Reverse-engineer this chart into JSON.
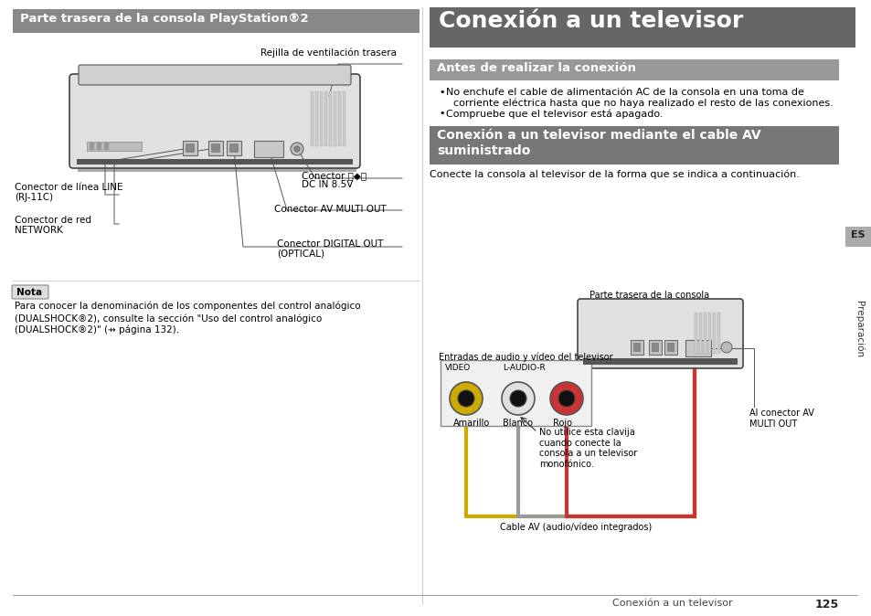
{
  "bg_color": "#ffffff",
  "header_left_bg": "#888888",
  "header_left_text": "Parte trasera de la consola PlayStation®2",
  "header_right_bg": "#666666",
  "header_right_text": "Conexión a un televisor",
  "subheader1_bg": "#999999",
  "subheader1_text": "Antes de realizar la conexión",
  "subheader2_bg": "#777777",
  "subheader2_text": "Conexión a un televisor mediante el cable AV\nsuministrado",
  "bullet1": "No enchufe el cable de alimentación AC de la consola en una toma de",
  "bullet1b": "corriente eléctrica hasta que no haya realizado el resto de las conexiones.",
  "bullet2": "Compruebe que el televisor está apagado.",
  "nota_label": "Nota",
  "nota_text1": "Para conocer la denominación de los componentes del control analógico",
  "nota_text2": "(DUALSHOCK®2), consulte la sección \"Uso del control analógico",
  "nota_text3": "(DUALSHOCK®2)\" (⇸ página 132).",
  "label_ventilacion": "Rejilla de ventilación trasera",
  "label_line_rj1": "Conector de línea LINE",
  "label_line_rj2": "(RJ-11C)",
  "label_dc1": "Conector ⦿◆⦿",
  "label_dc2": "DC IN 8.5V",
  "label_network1": "Conector de red",
  "label_network2": "NETWORK",
  "label_av": "Conector AV MULTI OUT",
  "label_digital1": "Conector DIGITAL OUT",
  "label_digital2": "(OPTICAL)",
  "caption_consola": "Conecte la consola al televisor de la forma que se indica a continuación.",
  "parte_trasera_label": "Parte trasera de la consola",
  "entradas_label": "Entradas de audio y vídeo del televisor",
  "video_label": "VIDEO",
  "laudio_label": "L-AUDIO-R",
  "amarillo_label": "Amarillo",
  "blanco_label": "Blanco",
  "rojo_label": "Rojo",
  "no_utilice_text": "No utilice esta clavija\ncuando conecte la\nconsola a un televisor\nmonofónico.",
  "al_conector_text": "Al conector AV\nMULTI OUT",
  "cable_av_label": "Cable AV (audio/vídeo integrados)",
  "es_label": "ES",
  "preparacion_label": "Preparación",
  "page_number": "125",
  "page_text": "Conexión a un televisor"
}
